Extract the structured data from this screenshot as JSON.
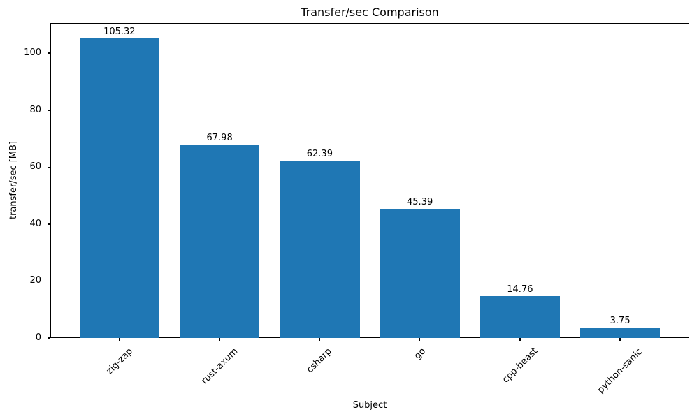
{
  "chart_data": {
    "type": "bar",
    "title": "Transfer/sec Comparison",
    "xlabel": "Subject",
    "ylabel": "transfer/sec [MB]",
    "categories": [
      "zig-zap",
      "rust-axum",
      "csharp",
      "go",
      "cpp-beast",
      "python-sanic"
    ],
    "values": [
      105.32,
      67.98,
      62.39,
      45.39,
      14.76,
      3.75
    ],
    "value_labels": [
      "105.32",
      "67.98",
      "62.39",
      "45.39",
      "14.76",
      "3.75"
    ],
    "yticks": [
      0,
      20,
      40,
      60,
      80,
      100
    ],
    "ytick_labels": [
      "0",
      "20",
      "40",
      "60",
      "80",
      "100"
    ],
    "ylim": [
      0,
      110.6
    ],
    "bar_color": "#1f77b4",
    "grid": false,
    "legend_position": "none"
  }
}
